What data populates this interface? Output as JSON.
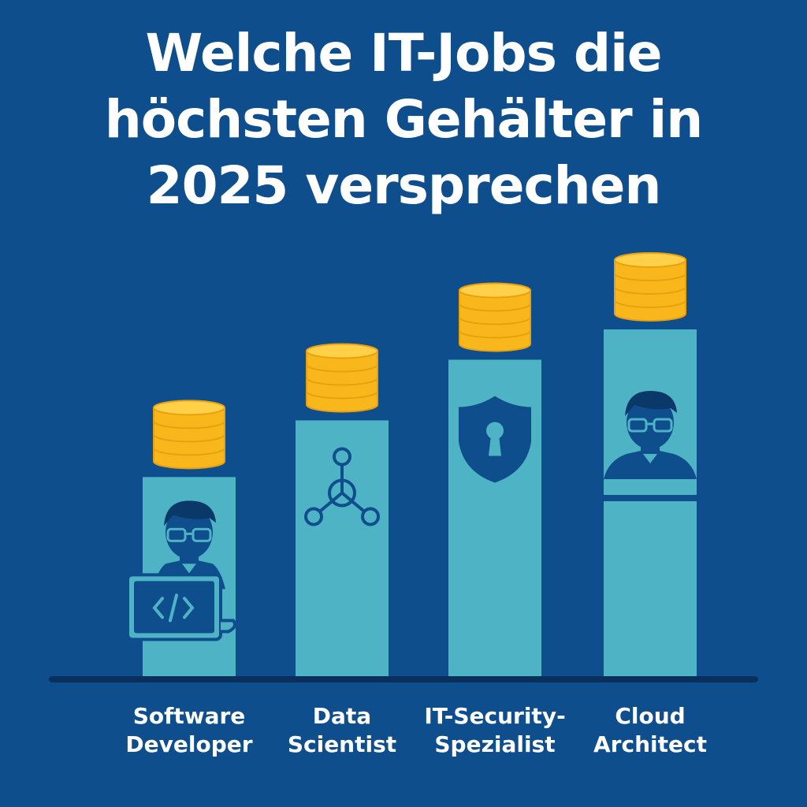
{
  "chart_data": {
    "type": "bar",
    "title_lines": [
      "Welche IT-Jobs die",
      "höchsten Gehälter in",
      "2025 versprechen"
    ],
    "categories": [
      {
        "lines": [
          "Software",
          "Developer"
        ],
        "icon": "developer-laptop-icon"
      },
      {
        "lines": [
          "Data",
          "Scientist"
        ],
        "icon": "network-nodes-icon"
      },
      {
        "lines": [
          "IT-Security-",
          "Spezialist"
        ],
        "icon": "shield-lock-icon"
      },
      {
        "lines": [
          "Cloud",
          "Architect"
        ],
        "icon": "person-icon"
      }
    ],
    "values": [
      1,
      1.28,
      1.58,
      1.73
    ],
    "ylim": [
      0,
      1.8
    ],
    "value_unit": "relative bar height (no axis printed)",
    "grid": false,
    "legend": "none",
    "decorations": "stack of gold coins above each bar"
  },
  "colors": {
    "background": "#0f4e8c",
    "bar": "#4fb3c6",
    "icon": "#0f4e8c",
    "coin": "#f8b81c",
    "coin_edge": "#e8a010",
    "coin_top": "#ffd048",
    "baseline": "#0a2f5c",
    "text": "#ffffff"
  }
}
